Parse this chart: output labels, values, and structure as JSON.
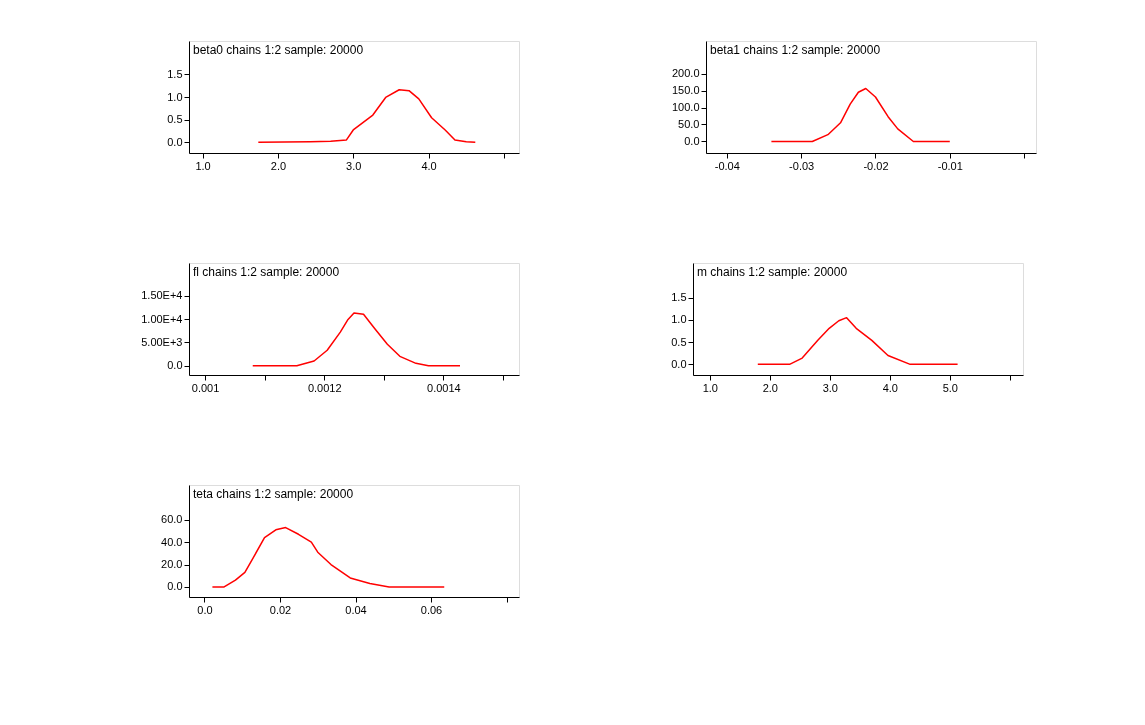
{
  "chart_data": [
    {
      "type": "line",
      "title": "beta0 chains 1:2 sample: 20000",
      "grid": false,
      "marker": "none",
      "line_style": "solid",
      "x": [
        1.74,
        2.43,
        2.7,
        2.91,
        3.0,
        3.26,
        3.43,
        3.61,
        3.74,
        3.87,
        4.04,
        4.22,
        4.35,
        4.5,
        4.62
      ],
      "series": [
        {
          "color": "#ff0000",
          "values": [
            0,
            0.01,
            0.02,
            0.05,
            0.27,
            0.6,
            0.99,
            1.16,
            1.14,
            0.96,
            0.54,
            0.27,
            0.05,
            0.01,
            0
          ]
        }
      ],
      "xlim": [
        0.82,
        5.2
      ],
      "xticks": [
        {
          "value": 1,
          "label": "1.0"
        },
        {
          "value": 2,
          "label": "2.0"
        },
        {
          "value": 3,
          "label": "3.0"
        },
        {
          "value": 4,
          "label": "4.0"
        },
        {
          "value": 5,
          "label": null
        }
      ],
      "ylim": [
        -0.24,
        2.24
      ],
      "yticks": [
        {
          "value": 0,
          "label": "0.0"
        },
        {
          "value": 0.5,
          "label": "0.5"
        },
        {
          "value": 1,
          "label": "1.0"
        },
        {
          "value": 1.5,
          "label": "1.5"
        }
      ]
    },
    {
      "type": "line",
      "title": "beta1 chains 1:2 sample: 20000",
      "grid": false,
      "marker": "none",
      "line_style": "solid",
      "x": [
        -0.034,
        -0.0285,
        -0.0264,
        -0.0247,
        -0.0234,
        -0.0223,
        -0.0213,
        -0.02,
        -0.0183,
        -0.017,
        -0.0149,
        -0.01
      ],
      "series": [
        {
          "color": "#ff0000",
          "values": [
            0,
            0,
            20,
            55,
            110,
            145,
            156,
            131,
            73,
            37,
            0,
            0
          ]
        }
      ],
      "xlim": [
        -0.0428,
        0.0016
      ],
      "xticks": [
        {
          "value": -0.04,
          "label": "-0.04"
        },
        {
          "value": -0.03,
          "label": "-0.03"
        },
        {
          "value": -0.02,
          "label": "-0.02"
        },
        {
          "value": -0.01,
          "label": "-0.01"
        },
        {
          "value": 0,
          "label": null
        }
      ],
      "ylim": [
        -34,
        296
      ],
      "yticks": [
        {
          "value": 0,
          "label": "0.0"
        },
        {
          "value": 50,
          "label": "50.0"
        },
        {
          "value": 100,
          "label": "100.0"
        },
        {
          "value": 150,
          "label": "150.0"
        },
        {
          "value": 200,
          "label": "200.0"
        }
      ]
    },
    {
      "type": "line",
      "title": "fl chains 1:2 sample: 20000",
      "grid": false,
      "marker": "none",
      "line_style": "solid",
      "x": [
        0.00108,
        0.001154,
        0.001183,
        0.001205,
        0.001227,
        0.00124,
        0.00125,
        0.001266,
        0.001285,
        0.001306,
        0.001327,
        0.001354,
        0.001375,
        0.001428
      ],
      "series": [
        {
          "color": "#ff0000",
          "values": [
            0,
            0,
            1000,
            3300,
            7200,
            9900,
            11300,
            11000,
            7900,
            4600,
            2000,
            500,
            0,
            0
          ]
        }
      ],
      "xlim": [
        0.000973,
        0.001527
      ],
      "xticks": [
        {
          "value": 0.001,
          "label": "0.001"
        },
        {
          "value": 0.0011,
          "label": null
        },
        {
          "value": 0.0012,
          "label": "0.0012"
        },
        {
          "value": 0.0013,
          "label": null
        },
        {
          "value": 0.0014,
          "label": "0.0014"
        },
        {
          "value": 0.0015,
          "label": null
        }
      ],
      "ylim": [
        -2000,
        22000
      ],
      "yticks": [
        {
          "value": 0,
          "label": "0.0"
        },
        {
          "value": 5000,
          "label": "5.00E+3"
        },
        {
          "value": 10000,
          "label": "1.00E+4"
        },
        {
          "value": 15000,
          "label": "1.50E+4"
        }
      ]
    },
    {
      "type": "line",
      "title": "m chains 1:2 sample: 20000",
      "grid": false,
      "marker": "none",
      "line_style": "solid",
      "x": [
        1.8,
        2.33,
        2.54,
        2.8,
        2.99,
        3.15,
        3.28,
        3.44,
        3.7,
        3.97,
        4.34,
        5.13
      ],
      "series": [
        {
          "color": "#ff0000",
          "values": [
            0,
            0,
            0.14,
            0.54,
            0.81,
            0.98,
            1.05,
            0.81,
            0.54,
            0.2,
            0,
            0
          ]
        }
      ],
      "xlim": [
        0.72,
        6.22
      ],
      "xticks": [
        {
          "value": 1,
          "label": "1.0"
        },
        {
          "value": 2,
          "label": "2.0"
        },
        {
          "value": 3,
          "label": "3.0"
        },
        {
          "value": 4,
          "label": "4.0"
        },
        {
          "value": 5,
          "label": "5.0"
        },
        {
          "value": 6,
          "label": null
        }
      ],
      "ylim": [
        -0.24,
        2.28
      ],
      "yticks": [
        {
          "value": 0,
          "label": "0.0"
        },
        {
          "value": 0.5,
          "label": "0.5"
        },
        {
          "value": 1,
          "label": "1.0"
        },
        {
          "value": 1.5,
          "label": "1.5"
        }
      ]
    },
    {
      "type": "line",
      "title": "teta chains 1:2 sample: 20000",
      "grid": false,
      "marker": "none",
      "line_style": "solid",
      "x": [
        0.0021,
        0.0052,
        0.0082,
        0.0107,
        0.0129,
        0.0159,
        0.0189,
        0.0215,
        0.0249,
        0.0283,
        0.03,
        0.0335,
        0.0386,
        0.0438,
        0.0489,
        0.0635
      ],
      "series": [
        {
          "color": "#ff0000",
          "values": [
            0,
            0,
            6,
            13,
            26,
            44,
            51,
            53,
            47,
            40,
            31,
            20,
            8,
            3,
            0,
            0
          ]
        }
      ],
      "xlim": [
        -0.0041,
        0.0833
      ],
      "xticks": [
        {
          "value": 0,
          "label": "0.0"
        },
        {
          "value": 0.02,
          "label": "0.02"
        },
        {
          "value": 0.04,
          "label": "0.04"
        },
        {
          "value": 0.06,
          "label": "0.06"
        },
        {
          "value": 0.08,
          "label": null
        }
      ],
      "ylim": [
        -9,
        91
      ],
      "yticks": [
        {
          "value": 0,
          "label": "0.0"
        },
        {
          "value": 20,
          "label": "20.0"
        },
        {
          "value": 40,
          "label": "40.0"
        },
        {
          "value": 60,
          "label": "60.0"
        }
      ]
    }
  ]
}
